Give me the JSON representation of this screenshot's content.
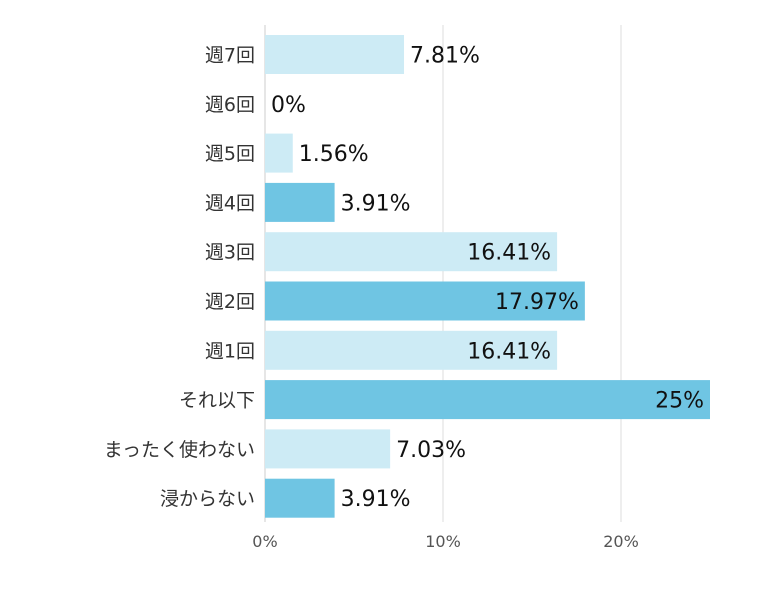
{
  "chart_data": {
    "type": "bar",
    "orientation": "horizontal",
    "categories": [
      "週7回",
      "週6回",
      "週5回",
      "週4回",
      "週3回",
      "週2回",
      "週1回",
      "それ以下",
      "まったく使わない",
      "浸からない"
    ],
    "values": [
      7.81,
      0,
      1.56,
      3.91,
      16.41,
      17.97,
      16.41,
      25,
      7.03,
      3.91
    ],
    "value_labels": [
      "7.81%",
      "0%",
      "1.56%",
      "3.91%",
      "16.41%",
      "17.97%",
      "16.41%",
      "25%",
      "7.03%",
      "3.91%"
    ],
    "bar_colors": [
      "#cdebf5",
      "#cdebf5",
      "#cdebf5",
      "#6fc5e3",
      "#cdebf5",
      "#6fc5e3",
      "#cdebf5",
      "#6fc5e3",
      "#cdebf5",
      "#6fc5e3"
    ],
    "xticks": [
      "0%",
      "10%",
      "20%"
    ],
    "xtick_values": [
      0,
      10,
      20
    ],
    "xlim": [
      0,
      25
    ],
    "grid": true,
    "title": "",
    "xlabel": "",
    "ylabel": ""
  }
}
